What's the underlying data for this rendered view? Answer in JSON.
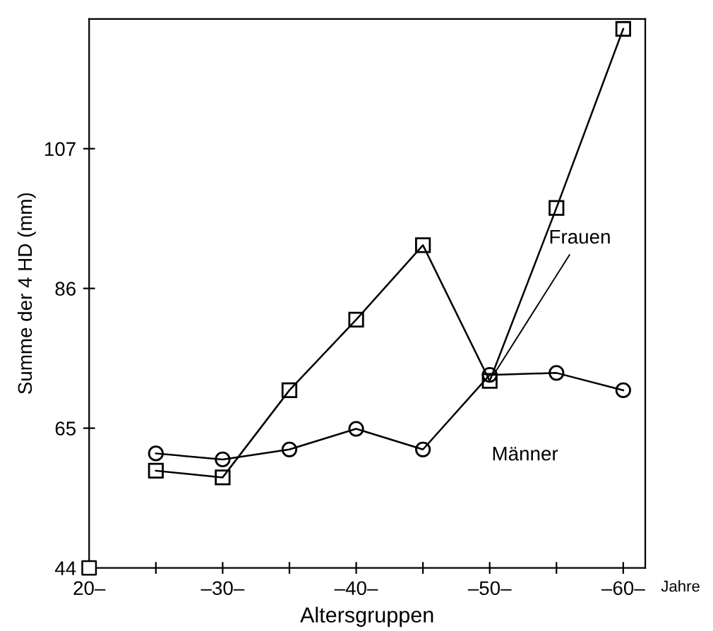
{
  "chart_data": {
    "type": "line",
    "xlabel": "Altersgruppen",
    "ylabel": "Summe der 4 HD (mm)",
    "annotations": [
      "Jahre"
    ],
    "categories": [
      "20–",
      null,
      "–30–",
      null,
      "–40–",
      null,
      "–50–",
      null,
      "–60–"
    ],
    "series": [
      {
        "name": "Frauen",
        "color": "#000000",
        "marker": "square",
        "values": [
          null,
          58.6,
          57.6,
          70.7,
          81.3,
          92.5,
          72.1,
          98.1,
          125
        ]
      },
      {
        "name": "Männer",
        "color": "#000000",
        "marker": "circle",
        "values": [
          null,
          61.2,
          60.3,
          61.8,
          64.9,
          61.8,
          73.0,
          73.3,
          70.7
        ]
      },
      {
        "type": "scatter",
        "color": "#000000",
        "marker": "square",
        "values": [
          44,
          null,
          null,
          null,
          null,
          null,
          null,
          null,
          null
        ]
      }
    ],
    "ylim": [
      44,
      126.5
    ],
    "yticks": [
      44,
      65,
      86,
      107
    ],
    "grid": false,
    "legend": false,
    "line_style": "solid"
  }
}
